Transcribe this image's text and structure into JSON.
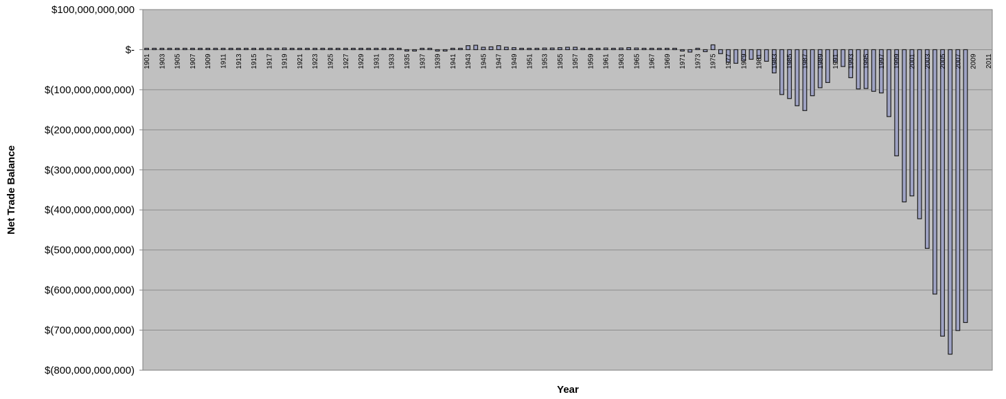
{
  "chart_data": {
    "type": "bar",
    "title": "",
    "xlabel": "Year",
    "ylabel": "Net Trade Balance",
    "ylim": [
      -800000000000,
      100000000000
    ],
    "grid": true,
    "y_tick_labels": [
      "$100,000,000,000",
      "$-",
      "$(100,000,000,000)",
      "$(200,000,000,000)",
      "$(300,000,000,000)",
      "$(400,000,000,000)",
      "$(500,000,000,000)",
      "$(600,000,000,000)",
      "$(700,000,000,000)",
      "$(800,000,000,000)"
    ],
    "y_tick_values": [
      100000000000,
      0,
      -100000000000,
      -200000000000,
      -300000000000,
      -400000000000,
      -500000000000,
      -600000000000,
      -700000000000,
      -800000000000
    ],
    "categories": [
      1901,
      1902,
      1903,
      1904,
      1905,
      1906,
      1907,
      1908,
      1909,
      1910,
      1911,
      1912,
      1913,
      1914,
      1915,
      1916,
      1917,
      1918,
      1919,
      1920,
      1921,
      1922,
      1923,
      1924,
      1925,
      1926,
      1927,
      1928,
      1929,
      1930,
      1931,
      1932,
      1933,
      1934,
      1935,
      1936,
      1937,
      1938,
      1939,
      1940,
      1941,
      1942,
      1943,
      1944,
      1945,
      1946,
      1947,
      1948,
      1949,
      1950,
      1951,
      1952,
      1953,
      1954,
      1955,
      1956,
      1957,
      1958,
      1959,
      1960,
      1961,
      1962,
      1963,
      1964,
      1965,
      1966,
      1967,
      1968,
      1969,
      1970,
      1971,
      1972,
      1973,
      1974,
      1975,
      1976,
      1977,
      1978,
      1979,
      1980,
      1981,
      1982,
      1983,
      1984,
      1985,
      1986,
      1987,
      1988,
      1989,
      1990,
      1991,
      1992,
      1993,
      1994,
      1995,
      1996,
      1997,
      1998,
      1999,
      2000,
      2001,
      2002,
      2003,
      2004,
      2005,
      2006,
      2007,
      2008,
      2009,
      2010,
      2011
    ],
    "x_tick_labels": [
      "1901",
      "1903",
      "1905",
      "1907",
      "1909",
      "1911",
      "1913",
      "1915",
      "1917",
      "1919",
      "1921",
      "1923",
      "1925",
      "1927",
      "1929",
      "1931",
      "1933",
      "1935",
      "1937",
      "1939",
      "1941",
      "1943",
      "1945",
      "1947",
      "1949",
      "1951",
      "1953",
      "1955",
      "1957",
      "1959",
      "1961",
      "1963",
      "1965",
      "1967",
      "1969",
      "1971",
      "1973",
      "1975",
      "1977",
      "1979",
      "1981",
      "1983",
      "1985",
      "1987",
      "1989",
      "1991",
      "1993",
      "1995",
      "1997",
      "1999",
      "2001",
      "2003",
      "2005",
      "2007",
      "2009",
      "2011"
    ],
    "series": [
      {
        "name": "",
        "color": "#9fa3c4",
        "values": [
          500000000,
          400000000,
          400000000,
          400000000,
          400000000,
          500000000,
          500000000,
          600000000,
          500000000,
          300000000,
          500000000,
          600000000,
          700000000,
          500000000,
          1800000000,
          3100000000,
          3600000000,
          3100000000,
          4000000000,
          2900000000,
          2000000000,
          700000000,
          400000000,
          1000000000,
          700000000,
          400000000,
          700000000,
          1000000000,
          800000000,
          800000000,
          300000000,
          300000000,
          200000000,
          500000000,
          -100000000,
          -100000000,
          300000000,
          1100000000,
          -1000000000,
          -2000000000,
          800000000,
          3400000000,
          10000000000,
          11000000000,
          6000000000,
          7000000000,
          10000000000,
          6000000000,
          5000000000,
          1000000000,
          3000000000,
          3000000000,
          4000000000,
          4000000000,
          5000000000,
          6000000000,
          6000000000,
          3000000000,
          2000000000,
          3000000000,
          4000000000,
          3000000000,
          4000000000,
          5000000000,
          4000000000,
          3000000000,
          3000000000,
          1000000000,
          1000000000,
          2000000000,
          -2000000000,
          -6000000000,
          1000000000,
          -5000000000,
          12000000000,
          -10000000000,
          -31000000000,
          -34000000000,
          -28000000000,
          -24000000000,
          -21000000000,
          -29000000000,
          -58000000000,
          -112000000000,
          -122000000000,
          -140000000000,
          -152000000000,
          -115000000000,
          -95000000000,
          -82000000000,
          -31000000000,
          -42000000000,
          -70000000000,
          -98000000000,
          -97000000000,
          -104000000000,
          -108000000000,
          -167000000000,
          -265000000000,
          -380000000000,
          -365000000000,
          -422000000000,
          -496000000000,
          -610000000000,
          -715000000000,
          -760000000000,
          -701000000000,
          -681000000000,
          null,
          null,
          null
        ]
      }
    ]
  }
}
